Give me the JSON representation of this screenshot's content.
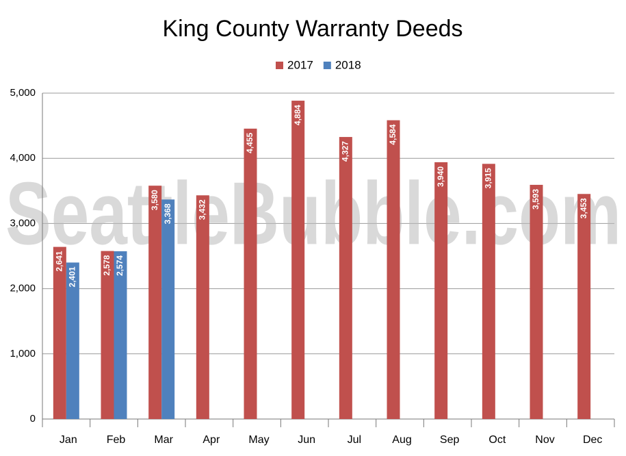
{
  "chart_data": {
    "type": "bar",
    "title": "King County Warranty Deeds",
    "watermark": "SeattleBubble.com",
    "categories": [
      "Jan",
      "Feb",
      "Mar",
      "Apr",
      "May",
      "Jun",
      "Jul",
      "Aug",
      "Sep",
      "Oct",
      "Nov",
      "Dec"
    ],
    "series": [
      {
        "name": "2017",
        "color": "#c0504d",
        "values": [
          2641,
          2578,
          3580,
          3432,
          4455,
          4884,
          4327,
          4584,
          3940,
          3915,
          3593,
          3453
        ],
        "value_labels": [
          "2,641",
          "2,578",
          "3,580",
          "3,432",
          "4,455",
          "4,884",
          "4,327",
          "4,584",
          "3,940",
          "3,915",
          "3,593",
          "3,453"
        ]
      },
      {
        "name": "2018",
        "color": "#4f81bd",
        "values": [
          2401,
          2574,
          3368,
          null,
          null,
          null,
          null,
          null,
          null,
          null,
          null,
          null
        ],
        "value_labels": [
          "2,401",
          "2,574",
          "3,368",
          null,
          null,
          null,
          null,
          null,
          null,
          null,
          null,
          null
        ]
      }
    ],
    "ylim": [
      0,
      5000
    ],
    "yticks": [
      0,
      {
        "value": 1000,
        "label": "1,000"
      },
      {
        "value": 2000,
        "label": "2,000"
      },
      {
        "value": 3000,
        "label": "3,000"
      },
      {
        "value": 4000,
        "label": "4,000"
      },
      {
        "value": 5000,
        "label": "5,000"
      }
    ],
    "grid": true,
    "legend": "top"
  }
}
